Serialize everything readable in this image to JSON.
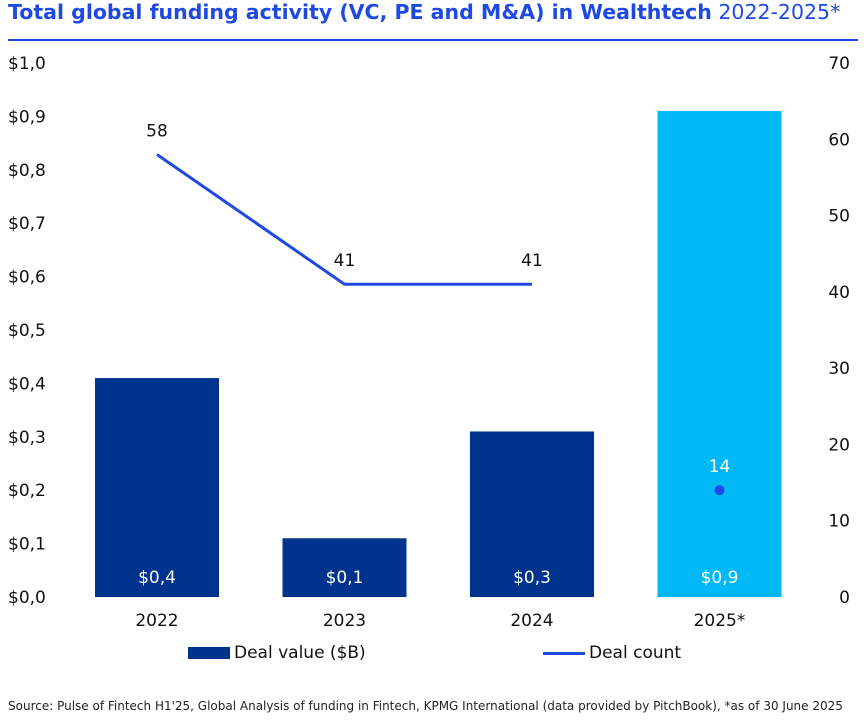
{
  "title": {
    "bold": "Total global funding activity (VC, PE and M&A) in Wealthtech",
    "regular": "2022-2025*"
  },
  "source": "Source: Pulse of Fintech H1'25, Global Analysis of funding in Fintech, KPMG International (data provided by PitchBook), *as of 30 June 2025",
  "colors": {
    "accent": "#1e49e2",
    "bar": "#00338d",
    "bar_highlight": "#00b8f5",
    "line": "#1e49e2"
  },
  "chart_data": {
    "type": "bar+line",
    "categories": [
      "2022",
      "2023",
      "2024",
      "2025*"
    ],
    "series": [
      {
        "name": "Deal value ($B)",
        "type": "bar",
        "axis": "left",
        "values": [
          0.41,
          0.11,
          0.31,
          0.91
        ],
        "labels": [
          "$0,4",
          "$0,1",
          "$0,3",
          "$0,9"
        ]
      },
      {
        "name": "Deal count",
        "type": "line",
        "axis": "right",
        "values": [
          58,
          41,
          41,
          14
        ],
        "labels": [
          "58",
          "41",
          "41",
          "14"
        ]
      }
    ],
    "left_axis": {
      "range": [
        0,
        1.0
      ],
      "ticks": [
        "$0,0",
        "$0,1",
        "$0,2",
        "$0,3",
        "$0,4",
        "$0,5",
        "$0,6",
        "$0,7",
        "$0,8",
        "$0,9",
        "$1,0"
      ]
    },
    "right_axis": {
      "range": [
        0,
        70
      ],
      "ticks": [
        "0",
        "10",
        "20",
        "30",
        "40",
        "50",
        "60",
        "70"
      ]
    },
    "grid": false,
    "legend_position": "bottom"
  }
}
